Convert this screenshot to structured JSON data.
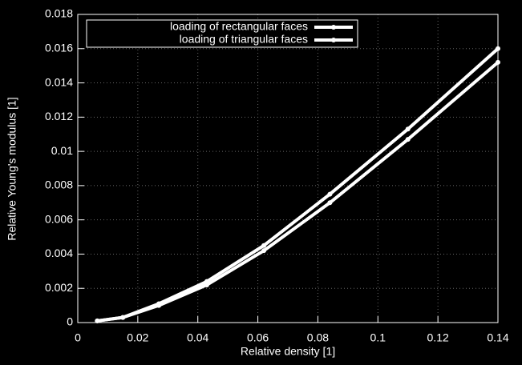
{
  "chart_data": {
    "type": "line",
    "x_label": "Relative density [1]",
    "y_label": "Relative Young's modulus [1]",
    "x": [
      0.0065,
      0.015,
      0.027,
      0.043,
      0.062,
      0.084,
      0.11,
      0.14
    ],
    "series": [
      {
        "name": "loading of rectangular faces",
        "color": "#ffffff",
        "values": [
          0.0001,
          0.0003,
          0.0011,
          0.0024,
          0.0045,
          0.0075,
          0.0113,
          0.016
        ]
      },
      {
        "name": "loading of triangular faces",
        "color": "#ffffff",
        "values": [
          0.0001,
          0.0003,
          0.001,
          0.0022,
          0.0042,
          0.007,
          0.0107,
          0.0152
        ]
      }
    ],
    "xlim": [
      0,
      0.14
    ],
    "xticks": [
      0,
      0.02,
      0.04,
      0.06,
      0.08,
      0.1,
      0.12,
      0.14
    ],
    "ylim": [
      0,
      0.018
    ],
    "yticks": [
      0,
      0.002,
      0.004,
      0.006,
      0.008,
      0.01,
      0.012,
      0.014,
      0.016,
      0.018
    ],
    "grid": true,
    "legend": "top-left"
  }
}
